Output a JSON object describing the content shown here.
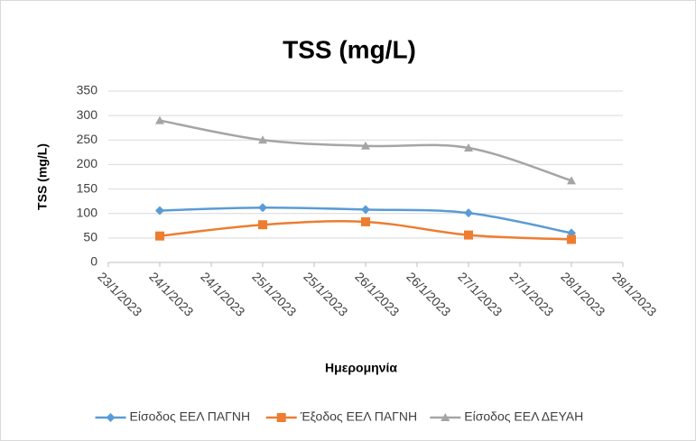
{
  "chart_data": {
    "type": "line",
    "title": "TSS (mg/L)",
    "x_label": "Ημερομηνία",
    "y_label": "TSS (mg/L)",
    "x": [
      24,
      25,
      26,
      27,
      28
    ],
    "xlim": [
      23.5,
      28.5
    ],
    "xticks": [
      {
        "value": 23.5,
        "label": "23/1/2023"
      },
      {
        "value": 24,
        "label": "24/1/2023"
      },
      {
        "value": 24.5,
        "label": "24/1/2023"
      },
      {
        "value": 25,
        "label": "25/1/2023"
      },
      {
        "value": 25.5,
        "label": "25/1/2023"
      },
      {
        "value": 26,
        "label": "26/1/2023"
      },
      {
        "value": 26.5,
        "label": "26/1/2023"
      },
      {
        "value": 27,
        "label": "27/1/2023"
      },
      {
        "value": 27.5,
        "label": "27/1/2023"
      },
      {
        "value": 28,
        "label": "28/1/2023"
      },
      {
        "value": 28.5,
        "label": "28/1/2023"
      }
    ],
    "ylim": [
      0,
      350
    ],
    "yticks": [
      0,
      50,
      100,
      150,
      200,
      250,
      300,
      350
    ],
    "grid": true,
    "smooth": true,
    "legend": "bottom",
    "series": [
      {
        "name": "Είσοδος ΕΕΛ ΠΑΓΝΗ",
        "color": "#5b9bd5",
        "marker": "diamond",
        "values": [
          106,
          112,
          108,
          101,
          60
        ]
      },
      {
        "name": "Έξοδος ΕΕΛ ΠΑΓΝΗ",
        "color": "#ed7d31",
        "marker": "square",
        "values": [
          54,
          77,
          83,
          56,
          47
        ]
      },
      {
        "name": "Είσοδος ΕΕΛ ΔΕΥΑΗ",
        "color": "#a5a5a5",
        "marker": "triangle",
        "values": [
          290,
          250,
          238,
          234,
          167
        ]
      }
    ]
  }
}
